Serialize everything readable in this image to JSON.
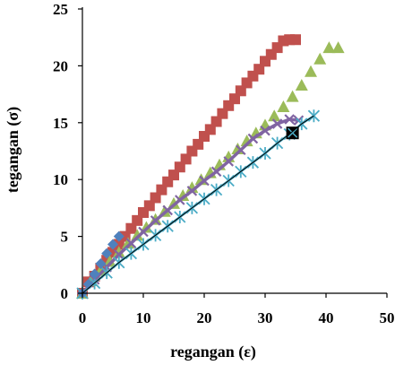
{
  "chart_data": {
    "type": "scatter",
    "title": "",
    "xlabel": "regangan (ε)",
    "ylabel": "tegangan (σ)",
    "xlim": [
      0,
      50
    ],
    "ylim": [
      0,
      25
    ],
    "xticks": [
      "0",
      "10",
      "20",
      "30",
      "40",
      "50"
    ],
    "yticks": [
      "0",
      "5",
      "10",
      "15",
      "20",
      "25"
    ],
    "grid": false,
    "legend": "none",
    "series": [
      {
        "marker": "square",
        "color": "#c0504d",
        "x": [
          0,
          1,
          2,
          3,
          4,
          5,
          6,
          7,
          8,
          9,
          10,
          11,
          12,
          13,
          14,
          15,
          16,
          17,
          18,
          19,
          20,
          21,
          22,
          23,
          24,
          25,
          26,
          27,
          28,
          29,
          30,
          31,
          32,
          33,
          34,
          35
        ],
        "y": [
          0,
          1.0,
          1.5,
          2.2,
          2.9,
          3.6,
          4.3,
          5.0,
          5.7,
          6.4,
          7.1,
          7.7,
          8.4,
          9.1,
          9.8,
          10.4,
          11.1,
          11.8,
          12.5,
          13.1,
          13.8,
          14.4,
          15.1,
          15.8,
          16.5,
          17.1,
          17.8,
          18.5,
          19.1,
          19.7,
          20.4,
          21.0,
          21.6,
          22.2,
          22.3,
          22.3
        ]
      },
      {
        "marker": "triangle",
        "color": "#9bbb59",
        "x": [
          0,
          1.5,
          3,
          4.5,
          6,
          7.5,
          9,
          10.5,
          12,
          13.5,
          15,
          16.5,
          18,
          19.5,
          21,
          22.5,
          24,
          25.5,
          27,
          28.5,
          30,
          31.5,
          33,
          34.5,
          36,
          37.5,
          39,
          40.5,
          42
        ],
        "y": [
          0,
          1.1,
          2.0,
          2.8,
          3.6,
          4.4,
          5.1,
          5.8,
          6.5,
          7.2,
          7.9,
          8.6,
          9.3,
          10.0,
          10.6,
          11.3,
          12.0,
          12.7,
          13.4,
          14.1,
          14.8,
          15.6,
          16.4,
          17.3,
          18.3,
          19.5,
          20.6,
          21.6,
          21.6
        ]
      },
      {
        "marker": "diamond",
        "color": "#4f81bd",
        "x": [
          0,
          1,
          2,
          3,
          4,
          5,
          6
        ],
        "y": [
          0,
          0.8,
          1.7,
          2.6,
          3.5,
          4.3,
          5.0
        ]
      },
      {
        "marker": "x",
        "color": "#8064a2",
        "x": [
          0,
          2,
          4,
          6,
          8,
          10,
          12,
          14,
          16,
          18,
          20,
          22,
          24,
          26,
          28,
          30,
          32,
          34,
          35.5
        ],
        "y": [
          0,
          1.2,
          2.3,
          3.4,
          4.4,
          5.4,
          6.4,
          7.3,
          8.2,
          9.0,
          9.9,
          10.7,
          11.6,
          12.6,
          13.6,
          14.3,
          14.9,
          15.3,
          15.2
        ]
      },
      {
        "marker": "star",
        "color": "#4bacc6",
        "x": [
          0,
          2,
          4,
          6,
          8,
          10,
          12,
          14,
          16,
          18,
          20,
          22,
          24,
          26,
          28,
          30,
          32,
          34,
          36,
          38
        ],
        "y": [
          0,
          0.9,
          1.8,
          2.7,
          3.5,
          4.3,
          5.1,
          5.9,
          6.7,
          7.5,
          8.3,
          9.1,
          9.9,
          10.7,
          11.5,
          12.3,
          13.2,
          14.0,
          14.9,
          15.6
        ]
      },
      {
        "marker": "filled-square",
        "color": "#000000",
        "x": [
          34.5
        ],
        "y": [
          14.1
        ]
      }
    ]
  }
}
